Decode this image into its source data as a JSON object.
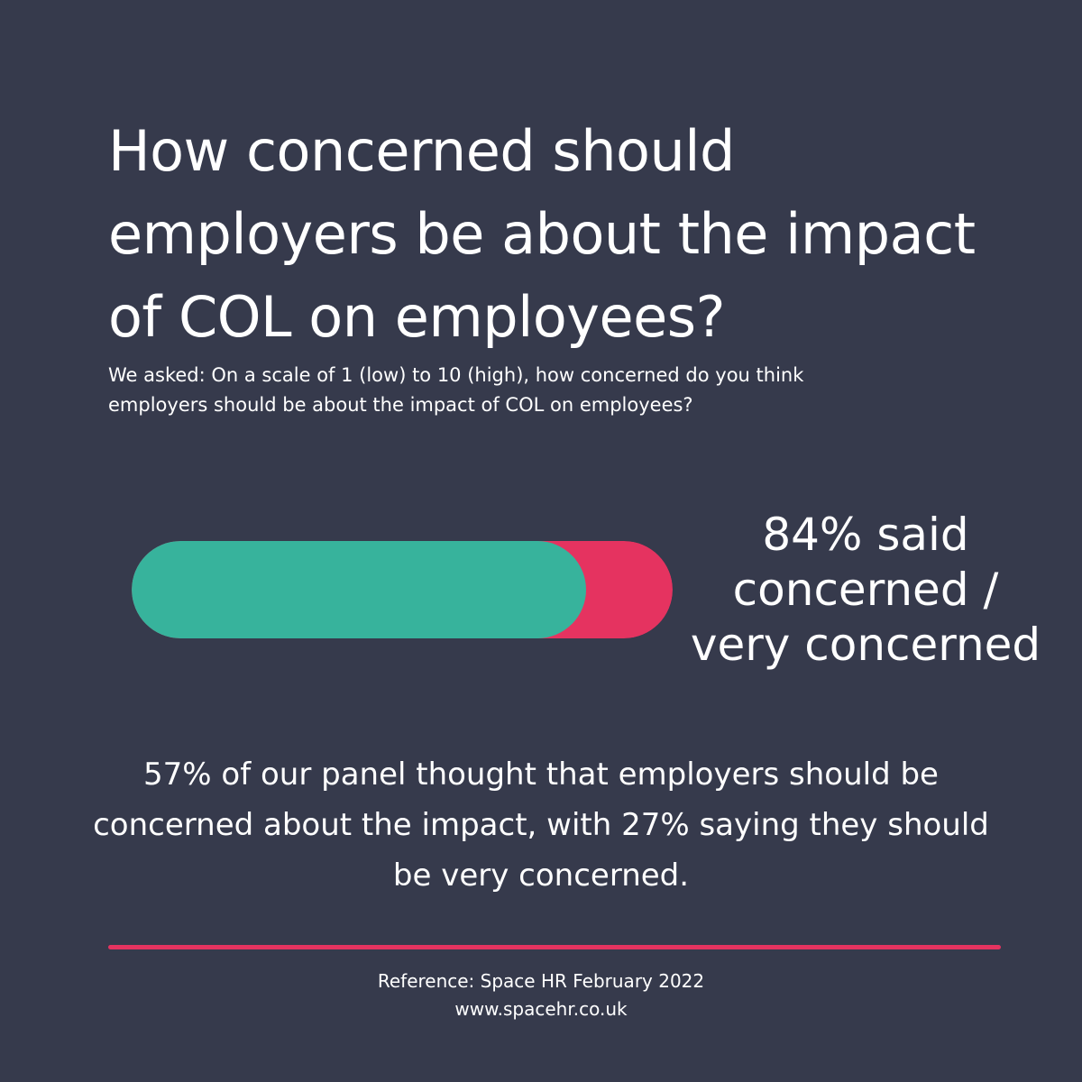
{
  "title": "How concerned should employers be about the impact of COL on employees?",
  "subtitle": "We asked: On a scale of 1 (low) to 10 (high), how concerned do you think employers should be about the impact of COL on employees?",
  "stat": {
    "line1": "84% said",
    "line2": "concerned /",
    "line3": "very concerned"
  },
  "chart_data": {
    "type": "bar",
    "orientation": "horizontal",
    "stacked": true,
    "categories": [
      ""
    ],
    "series": [
      {
        "values": [
          84
        ],
        "color": "#37b39c"
      },
      {
        "values": [
          16
        ],
        "color": "#e53360"
      }
    ],
    "xlim": [
      0,
      100
    ],
    "title": "",
    "xlabel": "",
    "ylabel": "",
    "grid": false
  },
  "body": "57% of our panel thought that employers should be concerned about the impact, with 27% saying they should be very concerned.",
  "footer": {
    "reference": "Reference: Space HR February 2022",
    "website": "www.spacehr.co.uk"
  },
  "colors": {
    "background": "#363a4c",
    "accent_green": "#37b39c",
    "accent_pink": "#e53360",
    "text": "#ffffff"
  }
}
